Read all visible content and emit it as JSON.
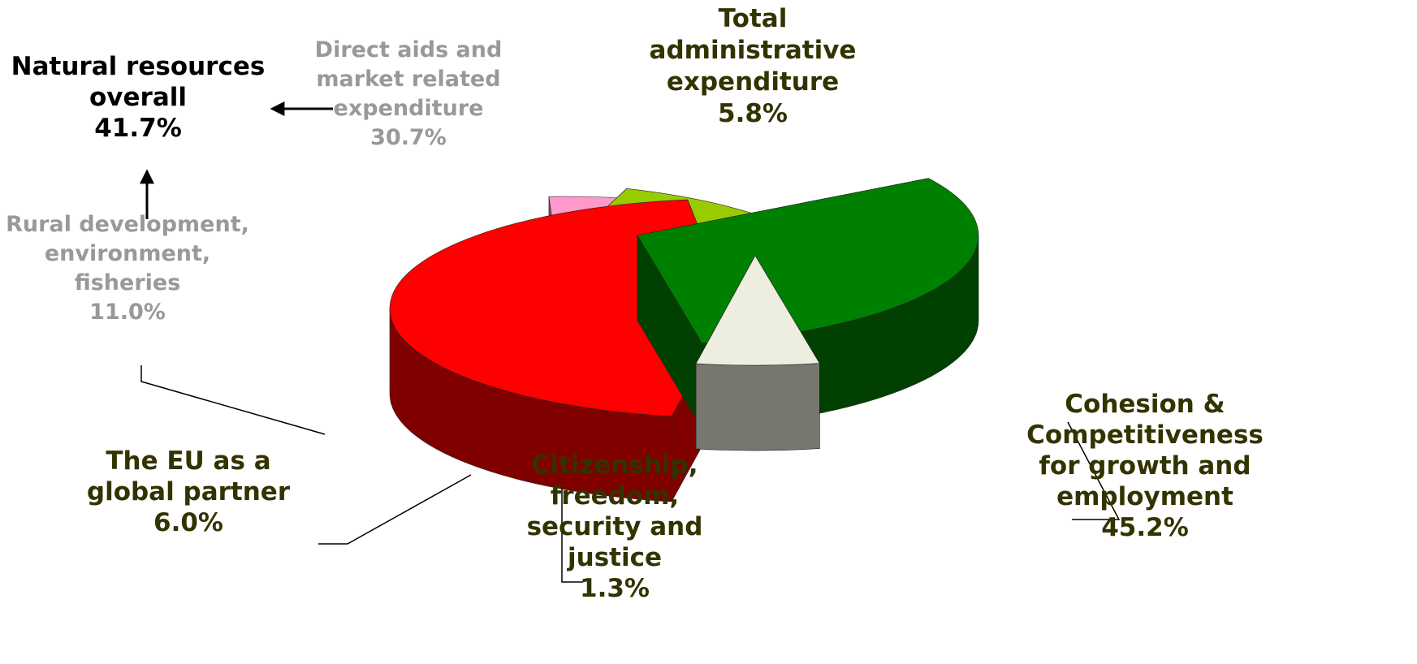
{
  "chart_data": {
    "type": "pie",
    "title": "",
    "slices": [
      {
        "label": "Cohesion & Competitiveness for growth and employment",
        "label_lines": [
          "Cohesion &",
          "Competitiveness",
          "for growth and",
          "employment"
        ],
        "value": 45.2,
        "value_text": "45.2%",
        "color": "#ff0000",
        "side_color": "#800000",
        "label_color": "#333300"
      },
      {
        "label": "Citizenship, freedom, security and justice",
        "label_lines": [
          "Citizenship,",
          "freedom,",
          "security and",
          "justice"
        ],
        "value": 1.3,
        "value_text": "1.3%",
        "color": "#0066cc",
        "side_color": "#003366",
        "label_color": "#333300"
      },
      {
        "label": "The EU as a global partner",
        "label_lines": [
          "The EU as a",
          "global partner"
        ],
        "value": 6.0,
        "value_text": "6.0%",
        "color": "#ff99cc",
        "side_color": "#804c66",
        "label_color": "#333300"
      },
      {
        "label": "Rural development, environment, fisheries",
        "label_lines": [
          "Rural development,",
          "environment,",
          "fisheries"
        ],
        "value": 11.0,
        "value_text": "11.0%",
        "color": "#99cc00",
        "side_color": "#4d6600",
        "label_color": "#999999"
      },
      {
        "label": "Direct aids and market related expenditure",
        "label_lines": [
          "Direct aids and",
          "market related",
          "expenditure"
        ],
        "value": 30.7,
        "value_text": "30.7%",
        "color": "#008000",
        "side_color": "#004000",
        "label_color": "#999999"
      },
      {
        "label": "Total administrative expenditure",
        "label_lines": [
          "Total",
          "administrative",
          "expenditure"
        ],
        "value": 5.8,
        "value_text": "5.8%",
        "color": "#eeeee0",
        "side_color": "#777770",
        "label_color": "#333300"
      }
    ],
    "group_annotation": {
      "label_lines": [
        "Natural resources",
        "overall"
      ],
      "value_text": "41.7%",
      "color": "#000000"
    }
  }
}
